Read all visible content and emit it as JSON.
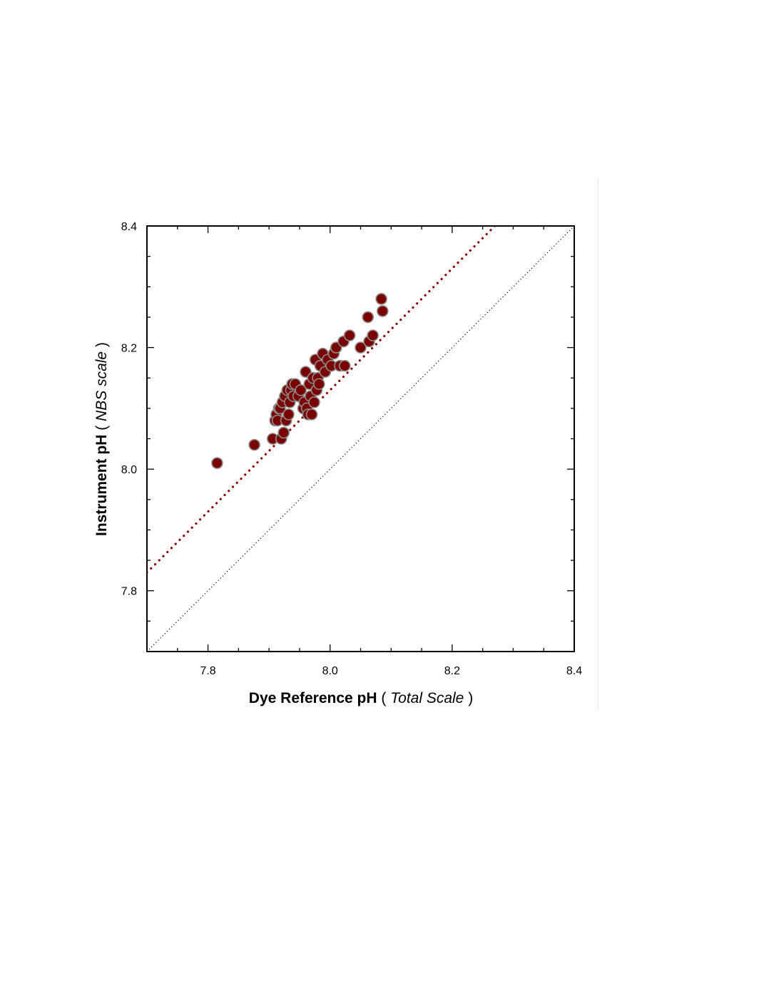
{
  "chart_data": {
    "type": "scatter",
    "title": "",
    "xlabel": {
      "main": "Dye Reference pH",
      "open": "(",
      "unit": "Total Scale",
      "close": ")"
    },
    "ylabel": {
      "main": "Instrument pH",
      "open": "(",
      "unit": "NBS scale",
      "close": ")"
    },
    "xlim": [
      7.7,
      8.4
    ],
    "ylim": [
      7.7,
      8.4
    ],
    "x_ticks": [
      "7.8",
      "8.0",
      "8.2",
      "8.4"
    ],
    "y_ticks": [
      "7.8",
      "8.0",
      "8.2",
      "8.4"
    ],
    "grid": false,
    "legend": "none",
    "colors": {
      "point_fill": "#7a0000",
      "point_stroke": "#8c8c8c",
      "fit_line": "#8b0000",
      "identity_line": "#000000",
      "axes": "#000000"
    },
    "series": [
      {
        "points": [
          [
            7.815,
            8.01
          ],
          [
            7.876,
            8.04
          ],
          [
            7.906,
            8.05
          ],
          [
            7.91,
            8.08
          ],
          [
            7.912,
            8.09
          ],
          [
            7.914,
            8.08
          ],
          [
            7.916,
            8.1
          ],
          [
            7.918,
            8.1
          ],
          [
            7.92,
            8.05
          ],
          [
            7.922,
            8.11
          ],
          [
            7.924,
            8.06
          ],
          [
            7.926,
            8.12
          ],
          [
            7.928,
            8.08
          ],
          [
            7.93,
            8.13
          ],
          [
            7.932,
            8.09
          ],
          [
            7.934,
            8.11
          ],
          [
            7.936,
            8.13
          ],
          [
            7.938,
            8.14
          ],
          [
            7.94,
            8.12
          ],
          [
            7.943,
            8.14
          ],
          [
            7.948,
            8.12
          ],
          [
            7.952,
            8.13
          ],
          [
            7.956,
            8.1
          ],
          [
            7.958,
            8.11
          ],
          [
            7.96,
            8.16
          ],
          [
            7.962,
            8.1
          ],
          [
            7.964,
            8.09
          ],
          [
            7.966,
            8.14
          ],
          [
            7.968,
            8.12
          ],
          [
            7.97,
            8.09
          ],
          [
            7.972,
            8.15
          ],
          [
            7.974,
            8.11
          ],
          [
            7.976,
            8.18
          ],
          [
            7.978,
            8.13
          ],
          [
            7.98,
            8.15
          ],
          [
            7.982,
            8.14
          ],
          [
            7.984,
            8.17
          ],
          [
            7.988,
            8.19
          ],
          [
            7.992,
            8.16
          ],
          [
            7.996,
            8.18
          ],
          [
            8.002,
            8.17
          ],
          [
            8.006,
            8.19
          ],
          [
            8.01,
            8.2
          ],
          [
            8.016,
            8.17
          ],
          [
            8.022,
            8.21
          ],
          [
            8.024,
            8.17
          ],
          [
            8.032,
            8.22
          ],
          [
            8.05,
            8.2
          ],
          [
            8.062,
            8.25
          ],
          [
            8.064,
            8.21
          ],
          [
            8.07,
            8.22
          ],
          [
            8.084,
            8.28
          ],
          [
            8.086,
            8.26
          ]
        ]
      }
    ],
    "fit_line": [
      [
        7.7,
        7.83
      ],
      [
        8.27,
        8.4
      ]
    ],
    "identity_line": [
      [
        7.7,
        7.7
      ],
      [
        8.4,
        8.4
      ]
    ]
  }
}
